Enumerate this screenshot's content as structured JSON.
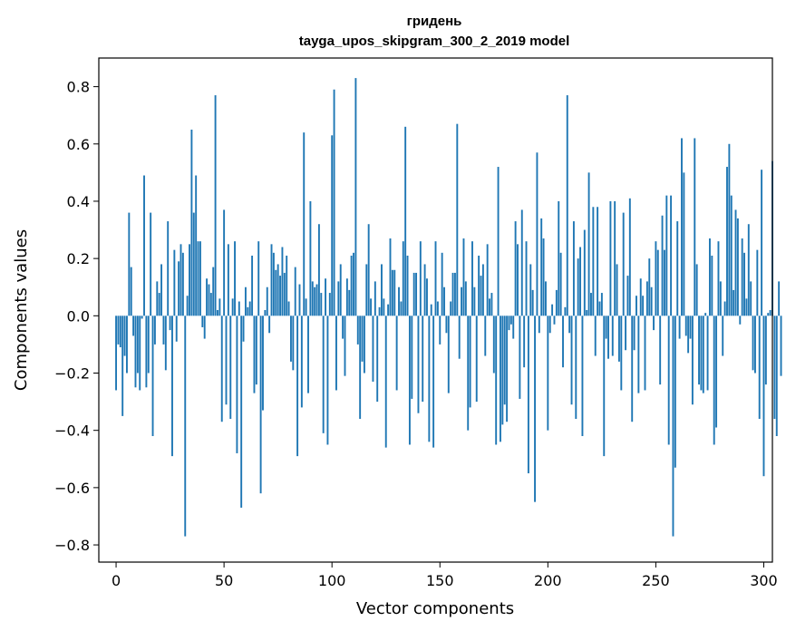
{
  "chart_data": {
    "type": "bar",
    "title": "гридень",
    "subtitle": "tayga_upos_skipgram_300_2_2019 model",
    "xlabel": "Vector components",
    "ylabel": "Components values",
    "xlim": [
      -8,
      304
    ],
    "ylim": [
      -0.86,
      0.9
    ],
    "xticks": [
      0,
      50,
      100,
      150,
      200,
      250,
      300
    ],
    "xtick_labels": [
      "0",
      "50",
      "100",
      "150",
      "200",
      "250",
      "300"
    ],
    "yticks": [
      -0.8,
      -0.6,
      -0.4,
      -0.2,
      0.0,
      0.2,
      0.4,
      0.6,
      0.8
    ],
    "ytick_labels": [
      "−0.8",
      "−0.6",
      "−0.4",
      "−0.2",
      "0.0",
      "0.2",
      "0.4",
      "0.6",
      "0.8"
    ],
    "color": "#1f77b4",
    "values": [
      -0.26,
      -0.1,
      -0.11,
      -0.35,
      -0.14,
      -0.2,
      0.36,
      0.17,
      -0.07,
      -0.25,
      -0.2,
      -0.26,
      -0.01,
      0.49,
      -0.25,
      -0.2,
      0.36,
      -0.42,
      -0.1,
      0.12,
      0.08,
      0.18,
      -0.1,
      -0.19,
      0.33,
      -0.05,
      -0.49,
      0.23,
      -0.09,
      0.19,
      0.25,
      0.22,
      -0.77,
      0.07,
      0.25,
      0.65,
      0.36,
      0.49,
      0.26,
      0.26,
      -0.04,
      -0.08,
      0.13,
      0.11,
      0.08,
      0.17,
      0.77,
      0.02,
      0.06,
      -0.37,
      0.37,
      -0.31,
      0.25,
      -0.36,
      0.06,
      0.26,
      -0.48,
      0.05,
      -0.67,
      -0.09,
      0.1,
      0.03,
      0.05,
      0.21,
      -0.27,
      -0.24,
      0.26,
      -0.62,
      -0.33,
      0.02,
      0.1,
      -0.06,
      0.25,
      0.22,
      0.16,
      0.18,
      0.14,
      0.24,
      0.15,
      0.21,
      0.05,
      -0.16,
      -0.19,
      0.17,
      -0.49,
      0.11,
      -0.32,
      0.64,
      0.06,
      -0.27,
      0.4,
      0.12,
      0.1,
      0.11,
      0.32,
      0.08,
      -0.41,
      0.13,
      -0.45,
      0.08,
      0.63,
      0.79,
      -0.26,
      0.12,
      0.18,
      -0.08,
      -0.21,
      0.13,
      0.09,
      0.21,
      0.22,
      0.83,
      -0.1,
      -0.36,
      -0.16,
      -0.2,
      0.18,
      0.32,
      0.06,
      -0.23,
      0.12,
      -0.3,
      0.03,
      0.18,
      0.06,
      -0.46,
      0.04,
      0.27,
      0.16,
      0.16,
      -0.26,
      0.1,
      0.05,
      0.26,
      0.66,
      0.21,
      -0.45,
      -0.29,
      0.15,
      0.15,
      -0.34,
      0.26,
      -0.3,
      0.18,
      0.13,
      -0.44,
      0.04,
      -0.46,
      0.26,
      0.05,
      -0.1,
      0.22,
      0.1,
      -0.06,
      -0.27,
      0.05,
      0.15,
      0.15,
      0.67,
      -0.15,
      0.1,
      0.27,
      0.12,
      -0.4,
      -0.32,
      0.26,
      0.1,
      -0.3,
      0.21,
      0.14,
      0.18,
      -0.14,
      0.25,
      0.06,
      0.08,
      -0.2,
      -0.45,
      0.52,
      -0.44,
      -0.38,
      -0.31,
      -0.37,
      -0.05,
      -0.03,
      -0.08,
      0.33,
      0.25,
      -0.29,
      0.37,
      -0.18,
      0.26,
      -0.55,
      0.18,
      0.09,
      -0.65,
      0.57,
      -0.06,
      0.34,
      0.27,
      0.12,
      -0.4,
      -0.06,
      0.04,
      -0.03,
      0.09,
      0.4,
      0.22,
      -0.18,
      0.03,
      0.77,
      -0.06,
      -0.31,
      0.33,
      -0.36,
      0.2,
      0.24,
      -0.42,
      0.3,
      0.02,
      0.5,
      0.08,
      0.38,
      -0.14,
      0.38,
      0.05,
      0.08,
      -0.49,
      -0.08,
      -0.15,
      0.4,
      -0.14,
      0.4,
      0.18,
      -0.16,
      -0.26,
      0.36,
      -0.12,
      0.14,
      0.41,
      -0.37,
      -0.12,
      0.07,
      -0.27,
      0.13,
      0.07,
      -0.26,
      0.12,
      0.2,
      0.1,
      -0.05,
      0.26,
      0.23,
      -0.24,
      0.35,
      0.23,
      0.42,
      -0.45,
      0.42,
      -0.77,
      -0.53,
      0.33,
      -0.08,
      0.62,
      0.5,
      -0.07,
      -0.13,
      -0.08,
      -0.31,
      0.62,
      0.18,
      -0.24,
      -0.26,
      -0.27,
      0.01,
      -0.26,
      0.27,
      0.21,
      -0.45,
      -0.39,
      0.26,
      0.12,
      -0.14,
      0.05,
      0.52,
      0.6,
      0.42,
      0.09,
      0.37,
      0.34,
      -0.03,
      0.27,
      0.22,
      0.06,
      0.32,
      0.12,
      -0.19,
      -0.2,
      0.23,
      -0.36,
      0.51,
      -0.56,
      -0.24,
      0.01,
      0.02,
      0.54,
      -0.36,
      -0.42,
      0.12,
      -0.21
    ]
  }
}
